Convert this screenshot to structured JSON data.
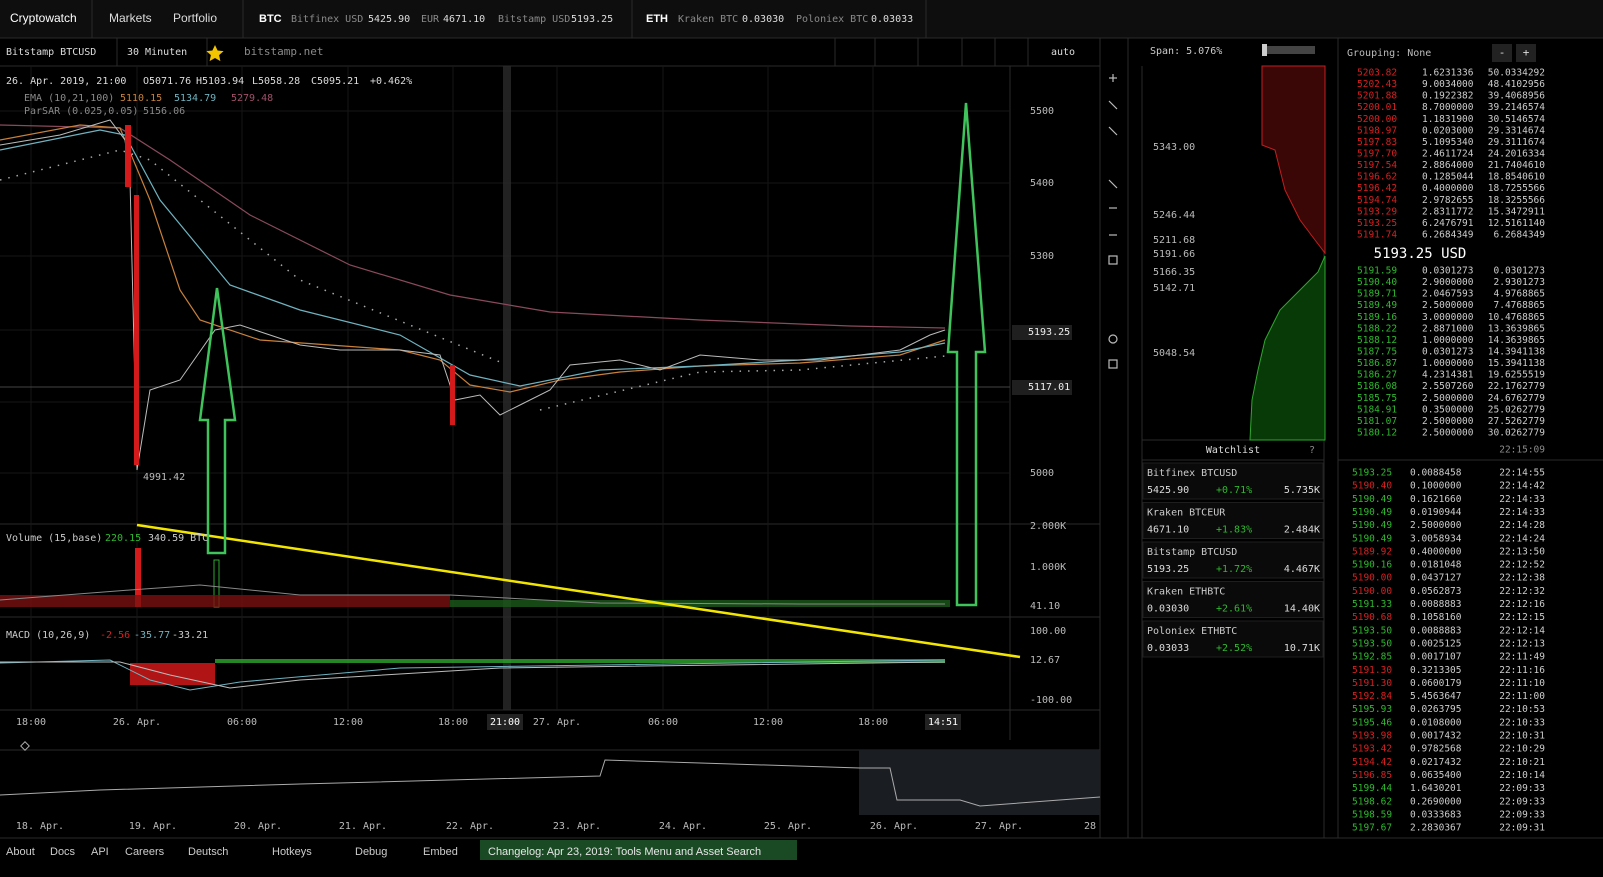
{
  "nav": {
    "brand": "Cryptowatch",
    "links": [
      "Markets",
      "Portfolio"
    ],
    "btc": {
      "label": "BTC",
      "quotes": [
        [
          "Bitfinex USD",
          "5425.90"
        ],
        [
          "EUR",
          "4671.10"
        ],
        [
          "Bitstamp USD",
          "5193.25"
        ]
      ]
    },
    "eth": {
      "label": "ETH",
      "quotes": [
        [
          "Kraken BTC",
          "0.03030"
        ],
        [
          "Poloniex BTC",
          "0.03033"
        ]
      ]
    }
  },
  "toolbar": {
    "market": "Bitstamp BTCUSD",
    "interval": "30 Minuten",
    "exchange_link": "bitstamp.net",
    "scale": "auto"
  },
  "legend": {
    "date": "26. Apr. 2019, 21:00",
    "ohlc": [
      "O5071.76",
      "H5103.94",
      "L5058.28",
      "C5095.21"
    ],
    "change": "+0.462%",
    "ema": {
      "label": "EMA (10,21,100)",
      "values": [
        "5110.15",
        "5134.79",
        "5279.48"
      ]
    },
    "parsar": {
      "label": "ParSAR (0.025,0.05)",
      "value": "5156.06"
    },
    "low_note": "4991.42"
  },
  "price_axis": {
    "ticks": [
      "5500",
      "5400",
      "5300",
      "5000"
    ],
    "current": "5193.25",
    "marker": "5117.01"
  },
  "volume": {
    "label": "Volume (15,base)",
    "values": [
      "220.15",
      "340.59 BTC"
    ],
    "axis": [
      "2.000K",
      "1.000K",
      "41.10"
    ]
  },
  "macd": {
    "label": "MACD (10,26,9)",
    "values": [
      "-2.56",
      "-35.77",
      "-33.21"
    ],
    "axis": [
      "100.00",
      "12.67",
      "-100.00"
    ]
  },
  "time_axis": [
    "18:00",
    "26. Apr.",
    "06:00",
    "12:00",
    "18:00",
    "21:00",
    "27. Apr.",
    "06:00",
    "12:00",
    "18:00",
    "14:51"
  ],
  "navigator_axis": [
    "18. Apr.",
    "19. Apr.",
    "20. Apr.",
    "21. Apr.",
    "22. Apr.",
    "23. Apr.",
    "24. Apr.",
    "25. Apr.",
    "26. Apr.",
    "27. Apr.",
    "28"
  ],
  "depth": {
    "span": "Span: 5.076%",
    "levels": [
      "5343.00",
      "5246.44",
      "5211.68",
      "5191.66",
      "5166.35",
      "5142.71",
      "5048.54"
    ]
  },
  "orderbook": {
    "grouping": "Grouping: None",
    "buttons": [
      "-",
      "+"
    ],
    "asks": [
      [
        "5203.82",
        "1.6231336",
        "50.0334292"
      ],
      [
        "5202.43",
        "9.0034000",
        "48.4102956"
      ],
      [
        "5201.88",
        "0.1922382",
        "39.4068956"
      ],
      [
        "5200.01",
        "8.7000000",
        "39.2146574"
      ],
      [
        "5200.00",
        "1.1831900",
        "30.5146574"
      ],
      [
        "5198.97",
        "0.0203000",
        "29.3314674"
      ],
      [
        "5197.83",
        "5.1095340",
        "29.3111674"
      ],
      [
        "5197.70",
        "2.4611724",
        "24.2016334"
      ],
      [
        "5197.54",
        "2.8864000",
        "21.7404610"
      ],
      [
        "5196.62",
        "0.1285044",
        "18.8540610"
      ],
      [
        "5196.42",
        "0.4000000",
        "18.7255566"
      ],
      [
        "5194.74",
        "2.9782655",
        "18.3255566"
      ],
      [
        "5193.29",
        "2.8311772",
        "15.3472911"
      ],
      [
        "5193.25",
        "6.2476791",
        "12.5161140"
      ],
      [
        "5191.74",
        "6.2684349",
        "6.2684349"
      ]
    ],
    "mid": "5193.25 USD",
    "bids": [
      [
        "5191.59",
        "0.0301273",
        "0.0301273"
      ],
      [
        "5190.40",
        "2.9000000",
        "2.9301273"
      ],
      [
        "5189.71",
        "2.0467593",
        "4.9768865"
      ],
      [
        "5189.49",
        "2.5000000",
        "7.4768865"
      ],
      [
        "5189.16",
        "3.0000000",
        "10.4768865"
      ],
      [
        "5188.22",
        "2.8871000",
        "13.3639865"
      ],
      [
        "5188.12",
        "1.0000000",
        "14.3639865"
      ],
      [
        "5187.75",
        "0.0301273",
        "14.3941138"
      ],
      [
        "5186.87",
        "1.0000000",
        "15.3941138"
      ],
      [
        "5186.27",
        "4.2314381",
        "19.6255519"
      ],
      [
        "5186.08",
        "2.5507260",
        "22.1762779"
      ],
      [
        "5185.75",
        "2.5000000",
        "24.6762779"
      ],
      [
        "5184.91",
        "0.3500000",
        "25.0262779"
      ],
      [
        "5181.07",
        "2.5000000",
        "27.5262779"
      ],
      [
        "5180.12",
        "2.5000000",
        "30.0262779"
      ]
    ],
    "time": "22:15:09"
  },
  "watchlist": {
    "title": "Watchlist",
    "help": "?",
    "items": [
      [
        "Bitfinex BTCUSD",
        "5425.90",
        "+0.71%",
        "5.735K"
      ],
      [
        "Kraken BTCEUR",
        "4671.10",
        "+1.83%",
        "2.484K"
      ],
      [
        "Bitstamp BTCUSD",
        "5193.25",
        "+1.72%",
        "4.467K"
      ],
      [
        "Kraken ETHBTC",
        "0.03030",
        "+2.61%",
        "14.40K"
      ],
      [
        "Poloniex ETHBTC",
        "0.03033",
        "+2.52%",
        "10.71K"
      ]
    ]
  },
  "trades": {
    "rows": [
      [
        "5193.25",
        "0.0088458",
        "22:14:55"
      ],
      [
        "5190.40",
        "0.1000000",
        "22:14:42"
      ],
      [
        "5190.49",
        "0.1621660",
        "22:14:33"
      ],
      [
        "5190.49",
        "0.0190944",
        "22:14:33"
      ],
      [
        "5190.49",
        "2.5000000",
        "22:14:28"
      ],
      [
        "5190.49",
        "3.0058934",
        "22:14:24"
      ],
      [
        "5189.92",
        "0.4000000",
        "22:13:50"
      ],
      [
        "5190.16",
        "0.0181048",
        "22:12:52"
      ],
      [
        "5190.00",
        "0.0437127",
        "22:12:38"
      ],
      [
        "5190.00",
        "0.0562873",
        "22:12:32"
      ],
      [
        "5191.33",
        "0.0088883",
        "22:12:16"
      ],
      [
        "5190.68",
        "0.1058160",
        "22:12:15"
      ],
      [
        "5193.50",
        "0.0088883",
        "22:12:14"
      ],
      [
        "5193.50",
        "0.0025125",
        "22:12:13"
      ],
      [
        "5192.85",
        "0.0017107",
        "22:11:49"
      ],
      [
        "5191.30",
        "0.3213305",
        "22:11:16"
      ],
      [
        "5191.30",
        "0.0600179",
        "22:11:10"
      ],
      [
        "5192.84",
        "5.4563647",
        "22:11:00"
      ],
      [
        "5195.93",
        "0.0263795",
        "22:10:53"
      ],
      [
        "5195.46",
        "0.0108000",
        "22:10:33"
      ],
      [
        "5193.98",
        "0.0017432",
        "22:10:31"
      ],
      [
        "5193.42",
        "0.9782568",
        "22:10:29"
      ],
      [
        "5194.42",
        "0.0217432",
        "22:10:21"
      ],
      [
        "5196.85",
        "0.0635400",
        "22:10:14"
      ],
      [
        "5199.44",
        "1.6430201",
        "22:09:33"
      ],
      [
        "5198.62",
        "0.2690000",
        "22:09:33"
      ],
      [
        "5198.59",
        "0.0333683",
        "22:09:33"
      ],
      [
        "5197.67",
        "2.2830367",
        "22:09:31"
      ]
    ],
    "sides": [
      "buy",
      "sell",
      "buy",
      "buy",
      "buy",
      "buy",
      "sell",
      "buy",
      "sell",
      "sell",
      "buy",
      "sell",
      "buy",
      "buy",
      "buy",
      "sell",
      "sell",
      "sell",
      "buy",
      "buy",
      "sell",
      "sell",
      "sell",
      "sell",
      "buy",
      "buy",
      "buy",
      "buy"
    ]
  },
  "footer": {
    "links": [
      "About",
      "Docs",
      "API",
      "Careers"
    ],
    "menus": [
      "Deutsch",
      "Hotkeys",
      "Debug",
      "Embed"
    ],
    "changelog": "Changelog: Apr 23, 2019: Tools Menu and Asset Search"
  }
}
